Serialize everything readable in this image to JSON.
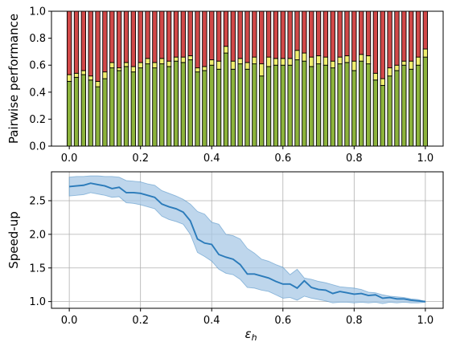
{
  "chart_data": [
    {
      "type": "bar",
      "stacked": true,
      "ylabel": "Pairwise performance",
      "xlabel": "",
      "xlim": [
        -0.05,
        1.05
      ],
      "ylim": [
        0,
        1.0
      ],
      "xticks": [
        "0.0",
        "0.2",
        "0.4",
        "0.6",
        "0.8",
        "1.0"
      ],
      "yticks": [
        "0.0",
        "0.2",
        "0.4",
        "0.6",
        "0.8",
        "1.0"
      ],
      "grid": false,
      "colors": {
        "green": "#8cb33b",
        "yellow": "#f0ee6e",
        "red": "#d14848"
      },
      "x": [
        0.0,
        0.02,
        0.04,
        0.06,
        0.08,
        0.1,
        0.12,
        0.14,
        0.16,
        0.18,
        0.2,
        0.22,
        0.24,
        0.26,
        0.28,
        0.3,
        0.32,
        0.34,
        0.36,
        0.38,
        0.4,
        0.42,
        0.44,
        0.46,
        0.48,
        0.5,
        0.52,
        0.54,
        0.56,
        0.58,
        0.6,
        0.62,
        0.64,
        0.66,
        0.68,
        0.7,
        0.72,
        0.74,
        0.76,
        0.78,
        0.8,
        0.82,
        0.84,
        0.86,
        0.88,
        0.9,
        0.92,
        0.94,
        0.96,
        0.98,
        1.0
      ],
      "series": [
        {
          "color_key": "green",
          "values": [
            0.48,
            0.51,
            0.53,
            0.49,
            0.44,
            0.5,
            0.58,
            0.56,
            0.59,
            0.55,
            0.58,
            0.61,
            0.58,
            0.61,
            0.59,
            0.63,
            0.62,
            0.64,
            0.55,
            0.56,
            0.6,
            0.57,
            0.69,
            0.57,
            0.61,
            0.57,
            0.61,
            0.52,
            0.59,
            0.6,
            0.6,
            0.6,
            0.64,
            0.63,
            0.59,
            0.61,
            0.6,
            0.58,
            0.61,
            0.62,
            0.56,
            0.63,
            0.61,
            0.49,
            0.45,
            0.52,
            0.56,
            0.6,
            0.57,
            0.6,
            0.66
          ]
        },
        {
          "color_key": "yellow",
          "values": [
            0.05,
            0.03,
            0.03,
            0.03,
            0.04,
            0.05,
            0.04,
            0.02,
            0.03,
            0.04,
            0.04,
            0.04,
            0.04,
            0.04,
            0.04,
            0.03,
            0.04,
            0.03,
            0.03,
            0.03,
            0.04,
            0.06,
            0.05,
            0.06,
            0.04,
            0.05,
            0.05,
            0.09,
            0.07,
            0.05,
            0.05,
            0.05,
            0.07,
            0.06,
            0.07,
            0.06,
            0.06,
            0.05,
            0.05,
            0.05,
            0.07,
            0.05,
            0.06,
            0.05,
            0.05,
            0.06,
            0.04,
            0.03,
            0.06,
            0.06,
            0.06
          ]
        },
        {
          "color_key": "red",
          "values": [
            0.47,
            0.46,
            0.44,
            0.48,
            0.52,
            0.45,
            0.38,
            0.42,
            0.38,
            0.41,
            0.38,
            0.35,
            0.38,
            0.35,
            0.37,
            0.34,
            0.34,
            0.33,
            0.42,
            0.41,
            0.36,
            0.37,
            0.26,
            0.37,
            0.35,
            0.38,
            0.34,
            0.39,
            0.34,
            0.35,
            0.35,
            0.35,
            0.29,
            0.31,
            0.34,
            0.33,
            0.34,
            0.37,
            0.34,
            0.33,
            0.37,
            0.32,
            0.33,
            0.46,
            0.5,
            0.42,
            0.4,
            0.37,
            0.37,
            0.34,
            0.28
          ]
        }
      ]
    },
    {
      "type": "line",
      "ylabel": "Speed-up",
      "xlabel": "ε_h",
      "xlabel_main": "ε",
      "xlabel_sub": "h",
      "xlim": [
        -0.05,
        1.05
      ],
      "ylim": [
        0.9,
        2.93
      ],
      "xticks": [
        "0.0",
        "0.2",
        "0.4",
        "0.6",
        "0.8",
        "1.0"
      ],
      "yticks": [
        "1.0",
        "1.5",
        "2.0",
        "2.5"
      ],
      "grid": true,
      "colors": {
        "line": "#2b7bba",
        "band": "#a8c8e6"
      },
      "x": [
        0.0,
        0.02,
        0.04,
        0.06,
        0.08,
        0.1,
        0.12,
        0.14,
        0.16,
        0.18,
        0.2,
        0.22,
        0.24,
        0.26,
        0.28,
        0.3,
        0.32,
        0.34,
        0.36,
        0.38,
        0.4,
        0.42,
        0.44,
        0.46,
        0.48,
        0.5,
        0.52,
        0.54,
        0.56,
        0.58,
        0.6,
        0.62,
        0.64,
        0.66,
        0.68,
        0.7,
        0.72,
        0.74,
        0.76,
        0.78,
        0.8,
        0.82,
        0.84,
        0.86,
        0.88,
        0.9,
        0.92,
        0.94,
        0.96,
        0.98,
        1.0
      ],
      "series": [
        {
          "role": "mean",
          "values": [
            2.71,
            2.72,
            2.73,
            2.76,
            2.74,
            2.72,
            2.68,
            2.7,
            2.62,
            2.62,
            2.61,
            2.58,
            2.55,
            2.45,
            2.41,
            2.38,
            2.33,
            2.2,
            1.93,
            1.87,
            1.85,
            1.7,
            1.66,
            1.63,
            1.55,
            1.41,
            1.41,
            1.38,
            1.35,
            1.3,
            1.26,
            1.26,
            1.2,
            1.31,
            1.21,
            1.18,
            1.17,
            1.12,
            1.15,
            1.13,
            1.11,
            1.12,
            1.09,
            1.1,
            1.05,
            1.06,
            1.04,
            1.04,
            1.02,
            1.01,
            1.0
          ]
        },
        {
          "role": "upper",
          "values": [
            2.85,
            2.86,
            2.86,
            2.87,
            2.87,
            2.86,
            2.86,
            2.85,
            2.8,
            2.79,
            2.78,
            2.75,
            2.73,
            2.65,
            2.61,
            2.57,
            2.52,
            2.45,
            2.34,
            2.3,
            2.18,
            2.15,
            2.0,
            1.98,
            1.93,
            1.79,
            1.72,
            1.63,
            1.6,
            1.55,
            1.51,
            1.4,
            1.48,
            1.35,
            1.33,
            1.3,
            1.28,
            1.25,
            1.22,
            1.21,
            1.2,
            1.18,
            1.14,
            1.13,
            1.1,
            1.08,
            1.07,
            1.06,
            1.04,
            1.03,
            1.0
          ]
        },
        {
          "role": "lower",
          "values": [
            2.57,
            2.58,
            2.59,
            2.62,
            2.6,
            2.58,
            2.55,
            2.56,
            2.47,
            2.46,
            2.44,
            2.41,
            2.38,
            2.27,
            2.22,
            2.19,
            2.15,
            2.0,
            1.73,
            1.67,
            1.6,
            1.48,
            1.42,
            1.4,
            1.33,
            1.21,
            1.2,
            1.17,
            1.15,
            1.1,
            1.05,
            1.06,
            1.02,
            1.08,
            1.05,
            1.03,
            1.01,
            0.98,
            0.99,
            0.99,
            0.98,
            0.99,
            0.98,
            0.99,
            0.97,
            0.99,
            0.98,
            0.99,
            0.98,
            0.98,
            0.99
          ]
        }
      ]
    }
  ]
}
